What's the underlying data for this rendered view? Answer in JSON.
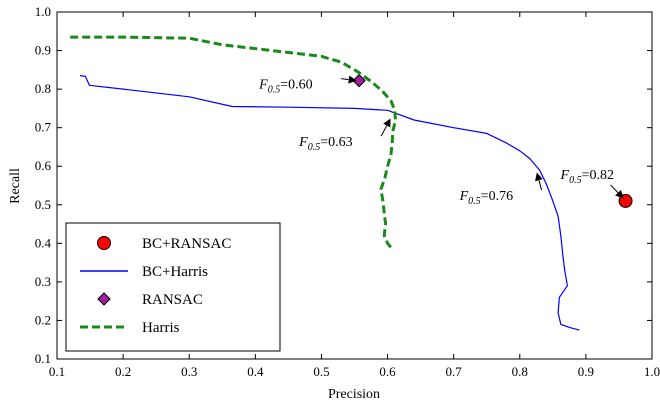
{
  "chart_data": {
    "type": "line",
    "xlabel": "Precision",
    "ylabel": "Recall",
    "xlim": [
      0.1,
      1.0
    ],
    "ylim": [
      0.1,
      1.0
    ],
    "xticks": [
      "0.1",
      "0.2",
      "0.3",
      "0.4",
      "0.5",
      "0.6",
      "0.7",
      "0.8",
      "0.9",
      "1.0"
    ],
    "yticks": [
      "0.1",
      "0.2",
      "0.3",
      "0.4",
      "0.5",
      "0.6",
      "0.7",
      "0.8",
      "0.9",
      "1.0"
    ],
    "grid": false,
    "legend_position": "lower-left",
    "series": [
      {
        "name": "BC+RANSAC",
        "kind": "marker",
        "marker": "circle",
        "color": "#ff0000",
        "points": [
          [
            0.96,
            0.51
          ]
        ]
      },
      {
        "name": "BC+Harris",
        "kind": "line",
        "style": "solid",
        "color": "#0000ff",
        "points": [
          [
            0.135,
            0.835
          ],
          [
            0.143,
            0.833
          ],
          [
            0.149,
            0.81
          ],
          [
            0.2,
            0.8
          ],
          [
            0.3,
            0.78
          ],
          [
            0.365,
            0.755
          ],
          [
            0.45,
            0.753
          ],
          [
            0.55,
            0.75
          ],
          [
            0.6,
            0.745
          ],
          [
            0.64,
            0.72
          ],
          [
            0.7,
            0.7
          ],
          [
            0.75,
            0.685
          ],
          [
            0.78,
            0.66
          ],
          [
            0.8,
            0.64
          ],
          [
            0.815,
            0.62
          ],
          [
            0.83,
            0.59
          ],
          [
            0.84,
            0.555
          ],
          [
            0.85,
            0.51
          ],
          [
            0.858,
            0.47
          ],
          [
            0.862,
            0.42
          ],
          [
            0.865,
            0.37
          ],
          [
            0.868,
            0.33
          ],
          [
            0.872,
            0.29
          ],
          [
            0.86,
            0.26
          ],
          [
            0.858,
            0.22
          ],
          [
            0.862,
            0.19
          ],
          [
            0.875,
            0.182
          ],
          [
            0.89,
            0.175
          ]
        ]
      },
      {
        "name": "RANSAC",
        "kind": "marker",
        "marker": "diamond",
        "color": "#a020a0",
        "points": [
          [
            0.557,
            0.822
          ]
        ]
      },
      {
        "name": "Harris",
        "kind": "line",
        "style": "dashed",
        "color": "#1a8a1a",
        "points": [
          [
            0.12,
            0.935
          ],
          [
            0.2,
            0.935
          ],
          [
            0.3,
            0.932
          ],
          [
            0.35,
            0.915
          ],
          [
            0.4,
            0.905
          ],
          [
            0.45,
            0.895
          ],
          [
            0.5,
            0.885
          ],
          [
            0.53,
            0.87
          ],
          [
            0.555,
            0.845
          ],
          [
            0.575,
            0.82
          ],
          [
            0.592,
            0.795
          ],
          [
            0.605,
            0.77
          ],
          [
            0.611,
            0.745
          ],
          [
            0.612,
            0.72
          ],
          [
            0.608,
            0.69
          ],
          [
            0.607,
            0.66
          ],
          [
            0.605,
            0.63
          ],
          [
            0.6,
            0.6
          ],
          [
            0.596,
            0.57
          ],
          [
            0.59,
            0.54
          ],
          [
            0.593,
            0.51
          ],
          [
            0.595,
            0.48
          ],
          [
            0.597,
            0.45
          ],
          [
            0.595,
            0.42
          ],
          [
            0.6,
            0.4
          ],
          [
            0.607,
            0.385
          ]
        ]
      }
    ],
    "annotations": [
      {
        "label": "F",
        "sub": "0.5",
        "value": "=0.60",
        "point": [
          0.557,
          0.822
        ]
      },
      {
        "label": "F",
        "sub": "0.5",
        "value": "=0.63",
        "point": [
          0.61,
          0.73
        ]
      },
      {
        "label": "F",
        "sub": "0.5",
        "value": "=0.76",
        "point": [
          0.83,
          0.59
        ]
      },
      {
        "label": "F",
        "sub": "0.5",
        "value": "=0.82",
        "point": [
          0.96,
          0.51
        ]
      }
    ]
  }
}
